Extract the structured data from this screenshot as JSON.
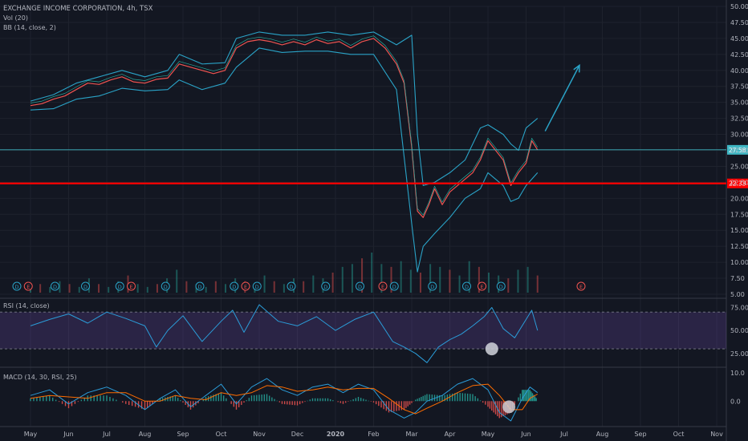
{
  "header": {
    "title": "EXCHANGE INCOME CORPORATION, 4h, TSX",
    "vol_label": "Vol (20)",
    "bb_label": "BB (14, close, 2)"
  },
  "colors": {
    "background": "#131722",
    "grid": "#1e222d",
    "separator": "#363a45",
    "price_up": "#26a69a",
    "price_down": "#ef5350",
    "bb_band": "#2aa3c7",
    "bb_basis": "#ef5350",
    "support_line": "#ff0000",
    "current_line": "#3fb7c4",
    "arrow": "#2aa3c7",
    "rsi_line": "#2b9cd8",
    "rsi_band": "#7e57c2",
    "macd_line": "#2b9cd8",
    "signal_line": "#ff6d00",
    "axis_text": "#b2b5be"
  },
  "chart_data": [
    {
      "id": "price",
      "type": "line",
      "title": "EXCHANGE INCOME CORPORATION, 4h, TSX",
      "x_labels": [
        "May",
        "Jun",
        "Jul",
        "Aug",
        "Sep",
        "Oct",
        "Nov",
        "Dec",
        "2020",
        "Feb",
        "Mar",
        "Apr",
        "May",
        "Jun",
        "Jul",
        "Aug",
        "Sep",
        "Oct",
        "Nov"
      ],
      "ylim": [
        5.0,
        50.0
      ],
      "y_ticks": [
        5.0,
        7.5,
        10.0,
        12.5,
        15.0,
        17.5,
        20.0,
        22.5,
        25.0,
        27.5,
        30.0,
        32.5,
        35.0,
        37.5,
        40.0,
        42.5,
        45.0,
        47.5,
        50.0
      ],
      "y_tick_labels": [
        "5.00",
        "7.50",
        "10.00",
        "12.50",
        "15.00",
        "17.50",
        "20.00",
        "22.50",
        "25.00",
        "27.50",
        "30.00",
        "32.50",
        "35.00",
        "37.50",
        "40.00",
        "42.50",
        "45.00",
        "47.50",
        "50.00"
      ],
      "grid": true,
      "series": [
        {
          "role": "close",
          "x": [
            0,
            0.3,
            0.6,
            0.9,
            1.2,
            1.5,
            1.8,
            2.1,
            2.4,
            2.7,
            3.0,
            3.3,
            3.6,
            3.9,
            4.2,
            4.5,
            4.8,
            5.1,
            5.4,
            5.7,
            6.0,
            6.3,
            6.6,
            6.9,
            7.2,
            7.5,
            7.8,
            8.1,
            8.4,
            8.7,
            9.0,
            9.3,
            9.6,
            9.8,
            10.0,
            10.15,
            10.3,
            10.45,
            10.6,
            10.8,
            11.0,
            11.2,
            11.4,
            11.6,
            11.8,
            12.0,
            12.2,
            12.4,
            12.6,
            12.8,
            13.0,
            13.15,
            13.3
          ],
          "values": [
            34.5,
            34.8,
            35.5,
            36.0,
            37.0,
            38.0,
            37.8,
            38.5,
            39.0,
            38.2,
            38.0,
            38.6,
            38.8,
            41.0,
            40.5,
            40.0,
            39.5,
            40.0,
            43.5,
            44.5,
            44.8,
            44.5,
            44.0,
            44.5,
            44.0,
            44.8,
            44.2,
            44.5,
            43.5,
            44.5,
            45.0,
            43.5,
            41.0,
            38.0,
            28.0,
            18.0,
            17.0,
            19.0,
            21.5,
            19.0,
            21.0,
            22.0,
            23.0,
            24.0,
            26.0,
            29.0,
            27.5,
            26.0,
            22.0,
            24.0,
            25.5,
            29.0,
            27.58
          ]
        },
        {
          "role": "bb-upper",
          "x": [
            0,
            0.6,
            1.2,
            1.8,
            2.4,
            3.0,
            3.6,
            3.9,
            4.5,
            5.1,
            5.4,
            6.0,
            6.6,
            7.2,
            7.8,
            8.4,
            9.0,
            9.6,
            10.0,
            10.15,
            10.3,
            10.6,
            11.0,
            11.4,
            11.8,
            12.0,
            12.4,
            12.6,
            12.8,
            13.0,
            13.3
          ],
          "values": [
            35.2,
            36.2,
            38.0,
            39.0,
            40.0,
            39.0,
            40.0,
            42.5,
            41.0,
            41.2,
            45.0,
            46.0,
            45.5,
            45.5,
            46.0,
            45.5,
            46.0,
            44.0,
            45.5,
            30.0,
            22.0,
            22.5,
            24.0,
            26.0,
            31.0,
            31.5,
            30.0,
            28.5,
            27.5,
            31.0,
            32.5
          ]
        },
        {
          "role": "bb-lower",
          "x": [
            0,
            0.6,
            1.2,
            1.8,
            2.4,
            3.0,
            3.6,
            3.9,
            4.5,
            5.1,
            5.4,
            6.0,
            6.6,
            7.2,
            7.8,
            8.4,
            9.0,
            9.6,
            10.0,
            10.15,
            10.3,
            10.6,
            11.0,
            11.4,
            11.8,
            12.0,
            12.4,
            12.6,
            12.8,
            13.0,
            13.3
          ],
          "values": [
            33.8,
            34.0,
            35.5,
            36.0,
            37.2,
            36.8,
            37.0,
            38.5,
            37.0,
            38.0,
            40.5,
            43.5,
            42.8,
            43.0,
            43.0,
            42.5,
            42.5,
            37.0,
            16.0,
            8.5,
            12.5,
            14.5,
            17.0,
            20.0,
            21.5,
            24.0,
            22.0,
            19.5,
            20.0,
            22.0,
            24.0
          ]
        }
      ],
      "horizontal_lines": [
        {
          "role": "current",
          "value": 27.58,
          "label": "27.58"
        },
        {
          "role": "support",
          "value": 22.33,
          "label": "22.33"
        }
      ],
      "arrow": {
        "from": {
          "x": 13.5,
          "y": 30.5
        },
        "to": {
          "x": 14.4,
          "y": 40.8
        }
      },
      "event_markers": {
        "x": [
          0,
          0.3,
          1.0,
          1.8,
          2.7,
          3.0,
          3.9,
          4.8,
          5.7,
          6.0,
          6.3,
          7.2,
          8.1,
          9.0,
          9.6,
          9.9,
          10.9,
          11.8,
          12.2,
          12.7,
          14.8
        ],
        "labels": [
          "D",
          "E",
          "D",
          "D",
          "D",
          "E",
          "D",
          "D",
          "D",
          "E",
          "D",
          "D",
          "D",
          "D",
          "E",
          "D",
          "D",
          "D",
          "E",
          "D",
          "E"
        ]
      }
    },
    {
      "id": "volume",
      "type": "bar",
      "title": "Vol (20)",
      "x_range": [
        0,
        13.3
      ],
      "values": [
        2,
        3,
        2,
        4,
        3,
        2,
        5,
        3,
        2,
        4,
        6,
        3,
        2,
        3,
        5,
        8,
        4,
        3,
        2,
        4,
        3,
        5,
        4,
        3,
        6,
        4,
        3,
        5,
        4,
        6,
        5,
        7,
        9,
        10,
        12,
        14,
        10,
        9,
        11,
        8,
        7,
        10,
        9,
        8,
        6,
        11,
        9,
        7,
        6,
        5,
        8,
        9,
        6
      ]
    },
    {
      "id": "rsi",
      "type": "line",
      "title": "RSI (14, close)",
      "ylim": [
        10,
        85
      ],
      "y_tick_labels": [
        "25.00",
        "50.00",
        "75.00"
      ],
      "y_ticks": [
        25,
        50,
        75
      ],
      "band": [
        30,
        70
      ],
      "series": [
        {
          "role": "rsi",
          "x": [
            0,
            0.5,
            1.0,
            1.5,
            2.0,
            2.5,
            3.0,
            3.3,
            3.6,
            4.0,
            4.5,
            5.0,
            5.3,
            5.6,
            6.0,
            6.5,
            7.0,
            7.5,
            8.0,
            8.5,
            9.0,
            9.5,
            9.8,
            10.1,
            10.4,
            10.7,
            11.0,
            11.3,
            11.6,
            11.9,
            12.1,
            12.4,
            12.7,
            13.0,
            13.15,
            13.3
          ],
          "values": [
            55,
            62,
            68,
            58,
            70,
            63,
            55,
            32,
            50,
            66,
            38,
            60,
            72,
            48,
            78,
            60,
            55,
            65,
            50,
            62,
            70,
            38,
            32,
            25,
            15,
            32,
            40,
            46,
            55,
            65,
            75,
            52,
            42,
            62,
            72,
            50
          ]
        }
      ],
      "marker": {
        "x": 12.1,
        "y": 30
      }
    },
    {
      "id": "macd",
      "type": "line",
      "title": "MACD (14, 30, RSI, 25)",
      "y_tick_labels": [
        "10.0",
        "0.0"
      ],
      "y_ticks": [
        10,
        0
      ],
      "ylim": [
        -9,
        12
      ],
      "series": [
        {
          "role": "macd",
          "x": [
            0,
            0.5,
            1.0,
            1.5,
            2.0,
            2.5,
            3.0,
            3.4,
            3.8,
            4.2,
            4.6,
            5.0,
            5.4,
            5.8,
            6.2,
            6.6,
            7.0,
            7.4,
            7.8,
            8.2,
            8.6,
            9.0,
            9.4,
            9.8,
            10.1,
            10.4,
            10.8,
            11.2,
            11.6,
            12.0,
            12.3,
            12.6,
            12.9,
            13.1,
            13.3
          ],
          "values": [
            2,
            4,
            -1,
            3,
            5,
            2,
            -3,
            1,
            4,
            -2,
            2,
            6,
            -1,
            5,
            8,
            4,
            2,
            5,
            6,
            3,
            6,
            4,
            -3,
            -6,
            -4,
            0,
            2,
            6,
            8,
            4,
            -4,
            -7,
            1,
            5,
            3
          ]
        },
        {
          "role": "signal",
          "x": [
            0,
            0.5,
            1.0,
            1.5,
            2.0,
            2.5,
            3.0,
            3.4,
            3.8,
            4.2,
            4.6,
            5.0,
            5.4,
            5.8,
            6.2,
            6.6,
            7.0,
            7.4,
            7.8,
            8.2,
            8.6,
            9.0,
            9.4,
            9.8,
            10.1,
            10.4,
            10.8,
            11.2,
            11.6,
            12.0,
            12.3,
            12.6,
            12.9,
            13.1,
            13.3
          ],
          "values": [
            1,
            2,
            1.5,
            1,
            3,
            3,
            0,
            0,
            2,
            1,
            0.5,
            3,
            2,
            3,
            5.5,
            5,
            3.5,
            4,
            5,
            4,
            4.5,
            4.5,
            1,
            -3,
            -4.5,
            -2.5,
            0,
            3,
            5.5,
            6,
            2,
            -3,
            -3,
            1,
            2.5
          ]
        }
      ],
      "marker": {
        "x": 12.55,
        "y": -2
      }
    }
  ]
}
